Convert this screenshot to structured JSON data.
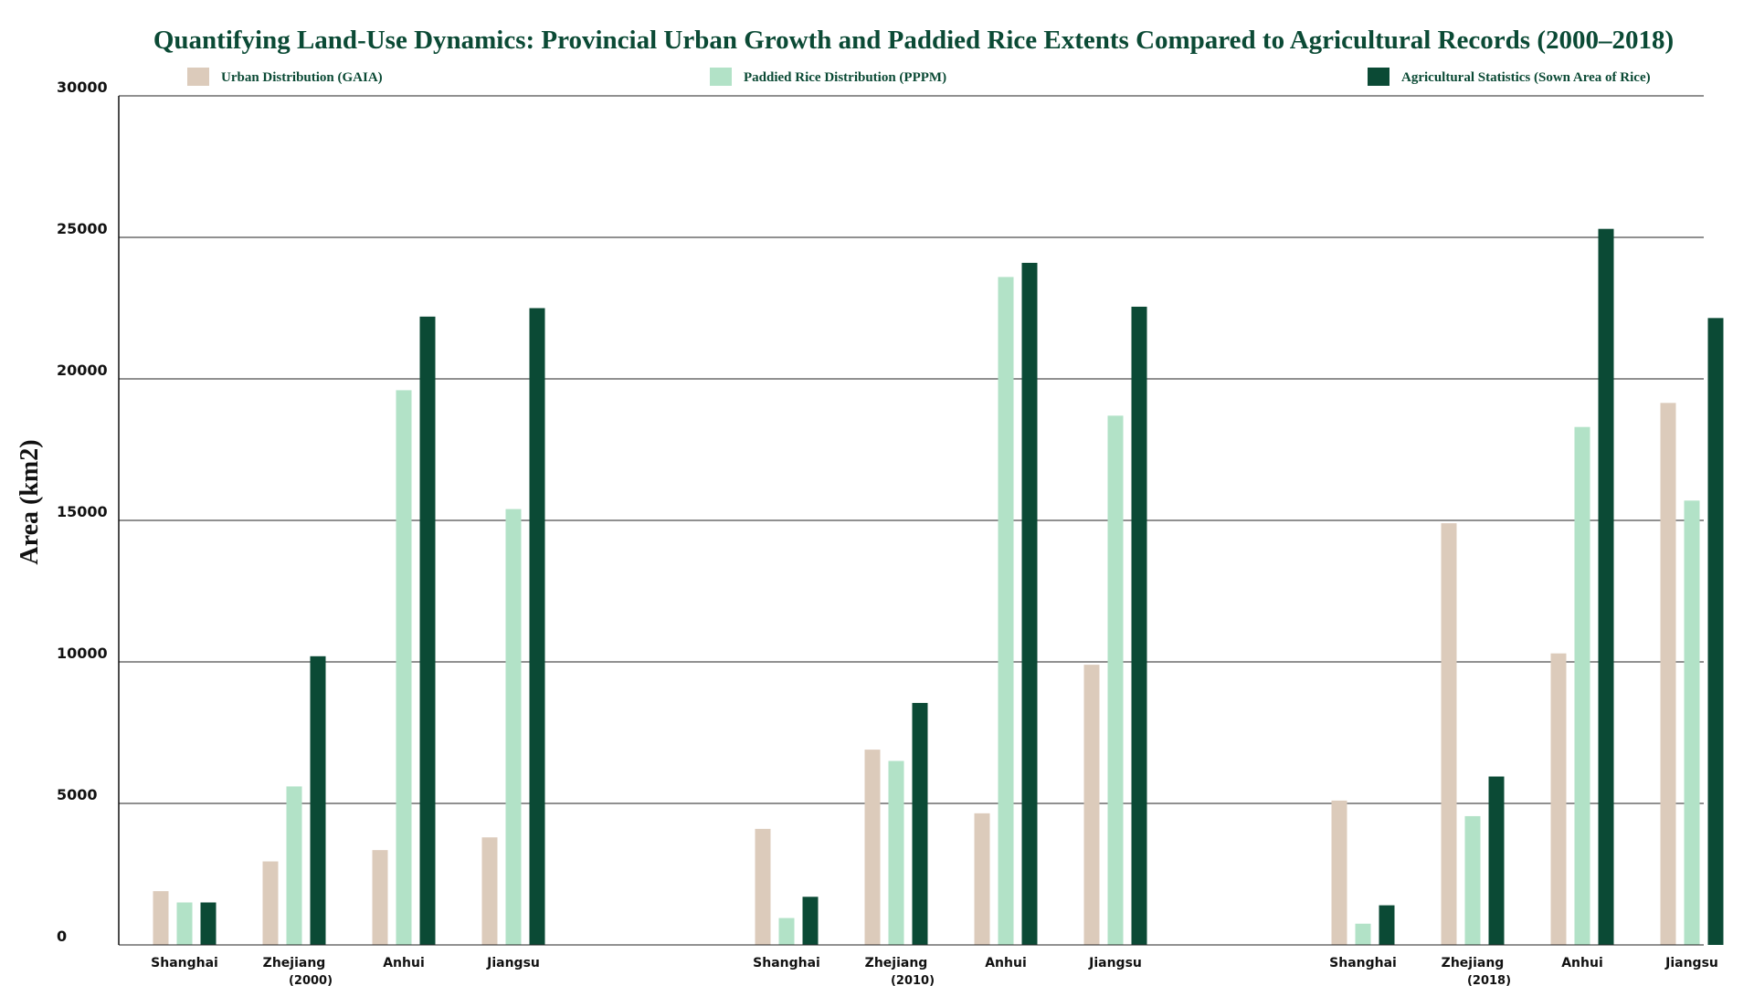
{
  "chart_data": {
    "type": "bar",
    "title": "Quantifying Land-Use Dynamics: Provincial Urban Growth and Paddied Rice Extents Compared to Agricultural Records (2000–2018)",
    "ylabel": "Area (km2)",
    "xlabel": "",
    "ylim": [
      0,
      30000
    ],
    "yticks": [
      0,
      5000,
      10000,
      15000,
      20000,
      25000,
      30000
    ],
    "grid": "horizontal",
    "legend_position": "top",
    "groups": [
      {
        "label": "(2000)",
        "categories": [
          "Shanghai",
          "Zhejiang",
          "Anhui",
          "Jiangsu"
        ],
        "series": [
          {
            "name": "Urban Distribution (GAIA)",
            "values": [
              1900,
              2950,
              3350,
              3800
            ]
          },
          {
            "name": "Paddied Rice Distribution (PPPM)",
            "values": [
              1500,
              5600,
              19600,
              15400
            ]
          },
          {
            "name": "Agricultural Statistics (Sown Area of Rice)",
            "values": [
              1500,
              10200,
              22200,
              22500
            ]
          }
        ]
      },
      {
        "label": "(2010)",
        "categories": [
          "Shanghai",
          "Zhejiang",
          "Anhui",
          "Jiangsu"
        ],
        "series": [
          {
            "name": "Urban Distribution (GAIA)",
            "values": [
              4100,
              6900,
              4650,
              9900
            ]
          },
          {
            "name": "Paddied Rice Distribution (PPPM)",
            "values": [
              950,
              6500,
              23600,
              18700
            ]
          },
          {
            "name": "Agricultural Statistics (Sown Area of Rice)",
            "values": [
              1700,
              8550,
              24100,
              22550
            ]
          }
        ]
      },
      {
        "label": "(2018)",
        "categories": [
          "Shanghai",
          "Zhejiang",
          "Anhui",
          "Jiangsu"
        ],
        "series": [
          {
            "name": "Urban Distribution (GAIA)",
            "values": [
              5100,
              14900,
              10300,
              19150
            ]
          },
          {
            "name": "Paddied Rice Distribution (PPPM)",
            "values": [
              750,
              4550,
              18300,
              15700
            ]
          },
          {
            "name": "Agricultural Statistics (Sown Area of Rice)",
            "values": [
              1400,
              5950,
              25300,
              22150
            ]
          }
        ]
      }
    ],
    "colors": [
      "#dccbbb",
      "#b2e2c7",
      "#0b4a35"
    ]
  }
}
